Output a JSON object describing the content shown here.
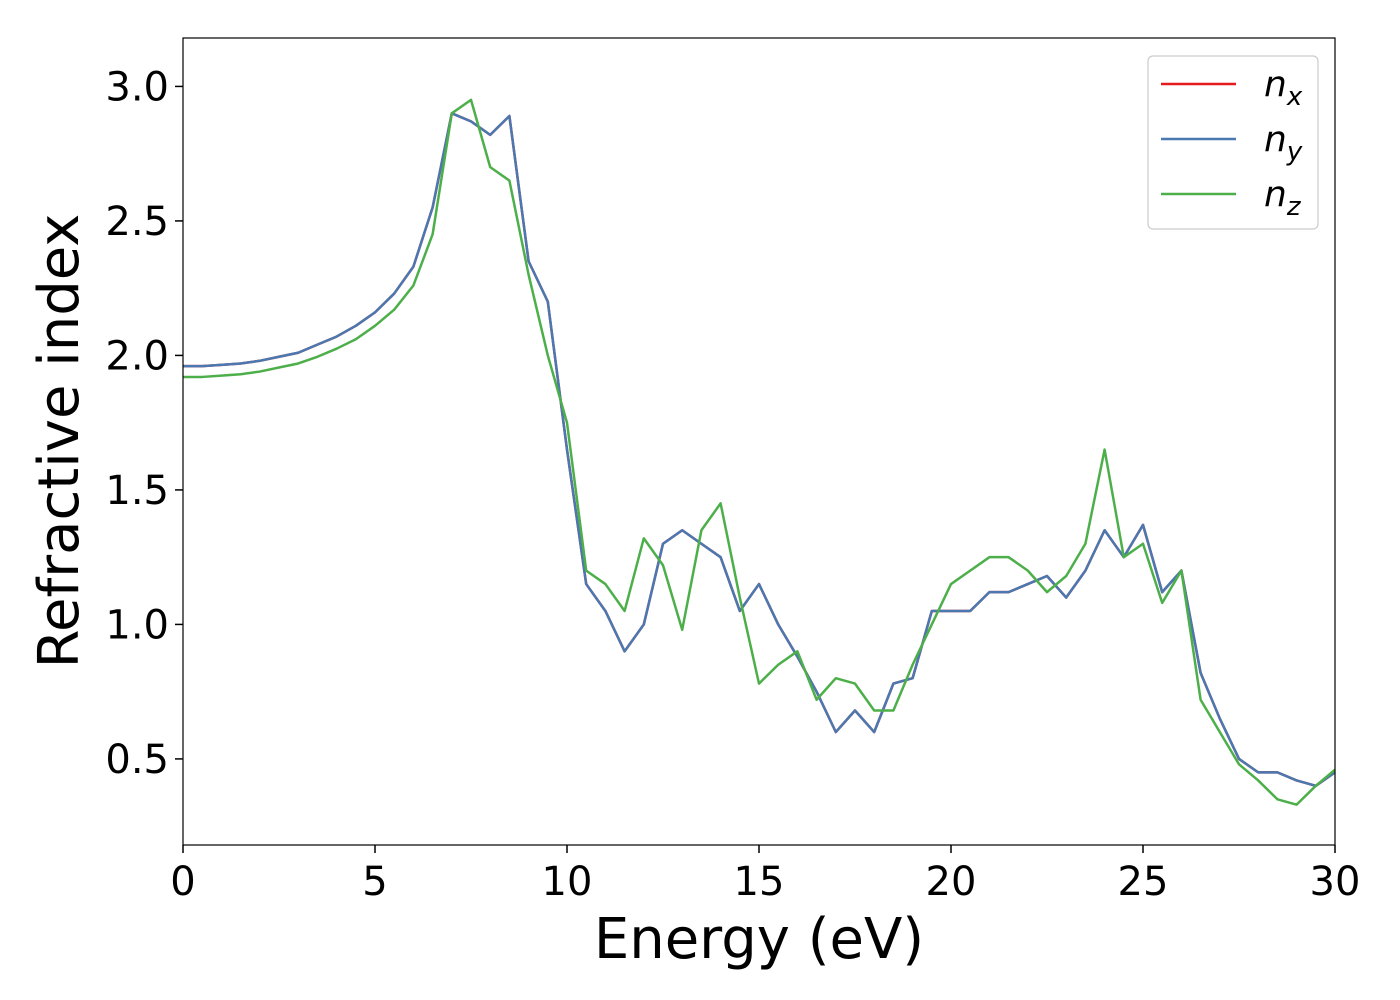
{
  "chart_data": {
    "type": "line",
    "xlabel": "Energy (eV)",
    "ylabel": "Refractive index",
    "xlim": [
      0,
      30
    ],
    "ylim": [
      0.18,
      3.18
    ],
    "xticks": [
      0,
      5,
      10,
      15,
      20,
      25,
      30
    ],
    "yticks": [
      0.5,
      {
        "value": 1,
        "label": "1.0"
      },
      1.5,
      {
        "value": 2,
        "label": "2.0"
      },
      2.5,
      {
        "value": 3,
        "label": "3.0"
      }
    ],
    "legend": "upper right",
    "grid": false,
    "x": [
      0,
      0.5,
      1,
      1.5,
      2,
      2.5,
      3,
      3.5,
      4,
      4.5,
      5,
      5.5,
      6,
      6.5,
      7,
      7.5,
      8,
      8.5,
      9,
      9.5,
      10,
      10.5,
      11,
      11.5,
      12,
      12.5,
      13,
      13.5,
      14,
      14.5,
      15,
      15.5,
      16,
      16.5,
      17,
      17.5,
      18,
      18.5,
      19,
      19.5,
      20,
      20.5,
      21,
      21.5,
      22,
      22.5,
      23,
      23.5,
      24,
      24.5,
      25,
      25.5,
      26,
      26.5,
      27,
      27.5,
      28,
      28.5,
      29,
      29.5,
      30
    ],
    "series": [
      {
        "name": "n_x",
        "color": "#e41a1c",
        "values": [
          1.96,
          1.96,
          1.965,
          1.97,
          1.98,
          1.995,
          2.01,
          2.04,
          2.07,
          2.11,
          2.16,
          2.23,
          2.33,
          2.55,
          2.9,
          2.87,
          2.82,
          2.89,
          2.35,
          2.2,
          1.65,
          1.15,
          1.05,
          0.9,
          1.0,
          1.3,
          1.35,
          1.3,
          1.25,
          1.05,
          1.15,
          1.0,
          0.88,
          0.75,
          0.6,
          0.68,
          0.6,
          0.78,
          0.8,
          1.05,
          1.05,
          1.05,
          1.12,
          1.12,
          1.15,
          1.18,
          1.1,
          1.2,
          1.35,
          1.25,
          1.37,
          1.12,
          1.2,
          0.82,
          0.65,
          0.5,
          0.45,
          0.45,
          0.42,
          0.4,
          0.45
        ]
      },
      {
        "name": "n_y",
        "color": "#4a78b0",
        "values": [
          1.96,
          1.96,
          1.965,
          1.97,
          1.98,
          1.995,
          2.01,
          2.04,
          2.07,
          2.11,
          2.16,
          2.23,
          2.33,
          2.55,
          2.9,
          2.87,
          2.82,
          2.89,
          2.35,
          2.2,
          1.65,
          1.15,
          1.05,
          0.9,
          1.0,
          1.3,
          1.35,
          1.3,
          1.25,
          1.05,
          1.15,
          1.0,
          0.88,
          0.75,
          0.6,
          0.68,
          0.6,
          0.78,
          0.8,
          1.05,
          1.05,
          1.05,
          1.12,
          1.12,
          1.15,
          1.18,
          1.1,
          1.2,
          1.35,
          1.25,
          1.37,
          1.12,
          1.2,
          0.82,
          0.65,
          0.5,
          0.45,
          0.45,
          0.42,
          0.4,
          0.45
        ]
      },
      {
        "name": "n_z",
        "color": "#4daf4a",
        "values": [
          1.92,
          1.92,
          1.925,
          1.93,
          1.94,
          1.955,
          1.97,
          1.995,
          2.025,
          2.06,
          2.11,
          2.17,
          2.26,
          2.45,
          2.9,
          2.95,
          2.7,
          2.65,
          2.3,
          2.0,
          1.75,
          1.2,
          1.15,
          1.05,
          1.32,
          1.22,
          0.98,
          1.35,
          1.45,
          1.1,
          0.78,
          0.85,
          0.9,
          0.72,
          0.8,
          0.78,
          0.68,
          0.68,
          0.85,
          1.0,
          1.15,
          1.2,
          1.25,
          1.25,
          1.2,
          1.12,
          1.18,
          1.3,
          1.65,
          1.25,
          1.3,
          1.08,
          1.2,
          0.72,
          0.6,
          0.48,
          0.42,
          0.35,
          0.33,
          0.4,
          0.46
        ]
      }
    ]
  }
}
